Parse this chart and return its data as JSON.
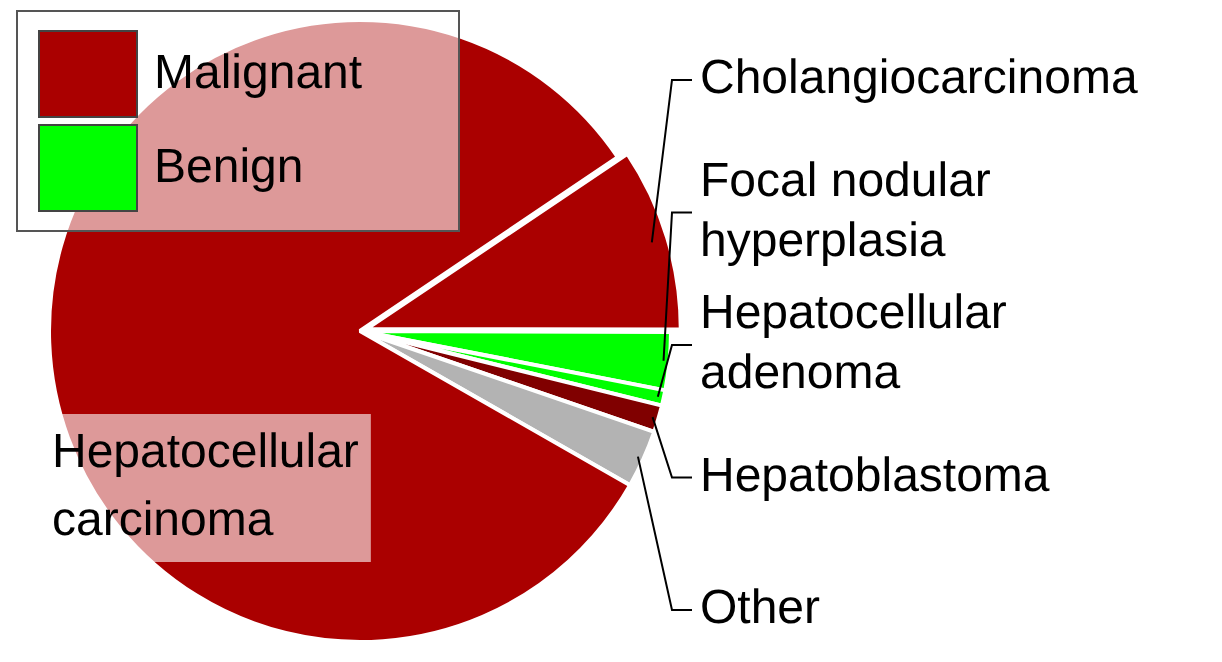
{
  "chart_data": {
    "type": "pie",
    "categories": [
      "Cholangiocarcinoma",
      "Focal nodular hyperplasia",
      "Hepatocellular adenoma",
      "Hepatoblastoma",
      "Other",
      "Hepatocellular carcinoma"
    ],
    "values": [
      9.5,
      3,
      0.8,
      1.4,
      3,
      82.3
    ],
    "colors": [
      "#aa0000",
      "#00ff00",
      "#00ff00",
      "#800000",
      "#b3b3b3",
      "#aa0000"
    ],
    "annotations": [
      "Malignant",
      "Benign"
    ]
  }
}
